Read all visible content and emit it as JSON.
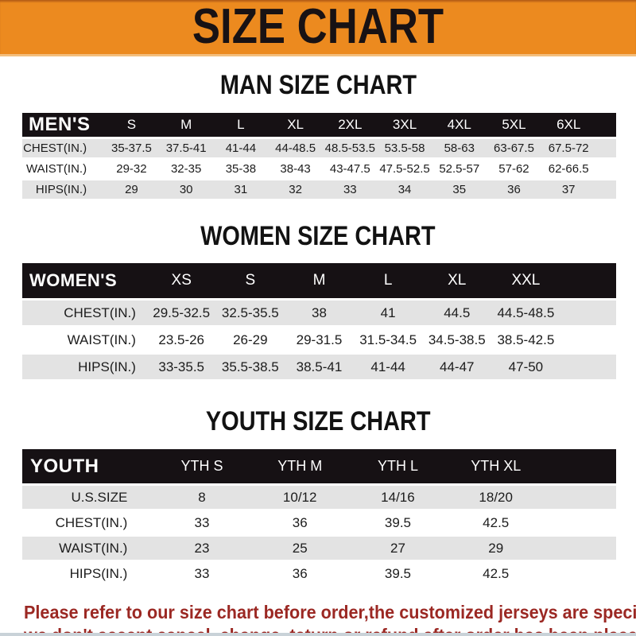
{
  "banner": {
    "title": "SIZE CHART"
  },
  "colors": {
    "banner_orange": "#EC8A1F",
    "banner_edge": "#F3BE7D",
    "table_header_black": "#161114",
    "row_gray": "#E3E3E3",
    "row_white": "#FFFFFF",
    "footer_red": "#9B2823",
    "title_black": "#181214"
  },
  "chart_data": [
    {
      "type": "table",
      "title": "MAN SIZE CHART",
      "corner_label": "MEN'S",
      "columns": [
        "S",
        "M",
        "L",
        "XL",
        "2XL",
        "3XL",
        "4XL",
        "5XL",
        "6XL"
      ],
      "row_labels": [
        "CHEST(IN.)",
        "WAIST(IN.)",
        "HIPS(IN.)"
      ],
      "rows": [
        [
          "35-37.5",
          "37.5-41",
          "41-44",
          "44-48.5",
          "48.5-53.5",
          "53.5-58",
          "58-63",
          "63-67.5",
          "67.5-72"
        ],
        [
          "29-32",
          "32-35",
          "35-38",
          "38-43",
          "43-47.5",
          "47.5-52.5",
          "52.5-57",
          "57-62",
          "62-66.5"
        ],
        [
          "29",
          "30",
          "31",
          "32",
          "33",
          "34",
          "35",
          "36",
          "37"
        ]
      ]
    },
    {
      "type": "table",
      "title": "WOMEN SIZE CHART",
      "corner_label": "WOMEN'S",
      "columns": [
        "XS",
        "S",
        "M",
        "L",
        "XL",
        "XXL"
      ],
      "row_labels": [
        "CHEST(IN.)",
        "WAIST(IN.)",
        "HIPS(IN.)"
      ],
      "rows": [
        [
          "29.5-32.5",
          "32.5-35.5",
          "38",
          "41",
          "44.5",
          "44.5-48.5"
        ],
        [
          "23.5-26",
          "26-29",
          "29-31.5",
          "31.5-34.5",
          "34.5-38.5",
          "38.5-42.5"
        ],
        [
          "33-35.5",
          "35.5-38.5",
          "38.5-41",
          "41-44",
          "44-47",
          "47-50"
        ]
      ]
    },
    {
      "type": "table",
      "title": "YOUTH SIZE CHART",
      "corner_label": "YOUTH",
      "columns": [
        "YTH S",
        "YTH M",
        "YTH L",
        "YTH XL"
      ],
      "row_labels": [
        "U.S.SIZE",
        "CHEST(IN.)",
        "WAIST(IN.)",
        "HIPS(IN.)"
      ],
      "rows": [
        [
          "8",
          "10/12",
          "14/16",
          "18/20"
        ],
        [
          "33",
          "36",
          "39.5",
          "42.5"
        ],
        [
          "23",
          "25",
          "27",
          "29"
        ],
        [
          "33",
          "36",
          "39.5",
          "42.5"
        ]
      ]
    }
  ],
  "footer": {
    "line1": "Please refer to our size chart before order,the customized jerseys are special products,",
    "line2": "we don't accept cancel, change, teturn or refund after order has been placed!"
  }
}
